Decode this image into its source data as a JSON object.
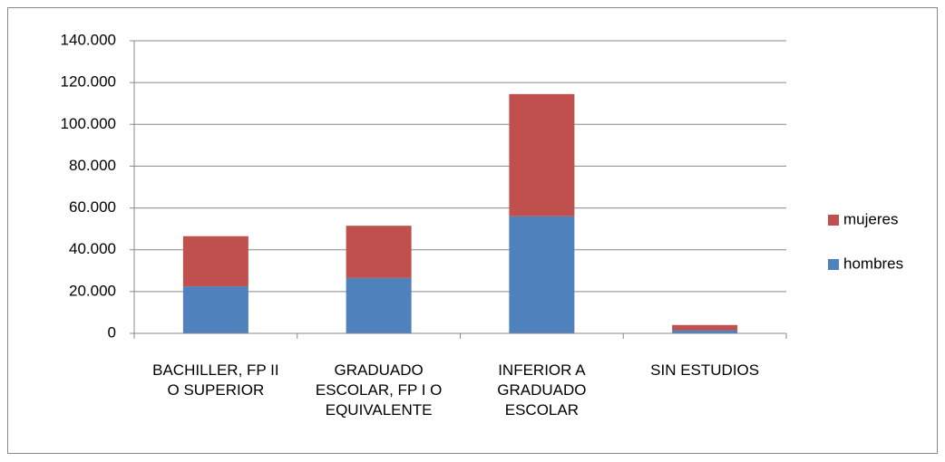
{
  "chart_data": {
    "type": "stacked_bar",
    "categories": [
      "BACHILLER, FP II\nO SUPERIOR",
      "GRADUADO\nESCOLAR, FP I O\nEQUIVALENTE",
      "INFERIOR A\nGRADUADO\nESCOLAR",
      "SIN ESTUDIOS"
    ],
    "series": [
      {
        "name": "hombres",
        "color": "#4f81bd",
        "values": [
          22500,
          26500,
          56000,
          1500
        ]
      },
      {
        "name": "mujeres",
        "color": "#c0504d",
        "values": [
          24000,
          25000,
          58500,
          2500
        ]
      }
    ],
    "ylim": [
      0,
      140000
    ],
    "yticks": [
      0,
      {
        "value": 20000,
        "label": "20.000"
      },
      {
        "value": 40000,
        "label": "40.000"
      },
      {
        "value": 60000,
        "label": "60.000"
      },
      {
        "value": 80000,
        "label": "80.000"
      },
      {
        "value": 100000,
        "label": "100.000"
      },
      {
        "value": 120000,
        "label": "120.000"
      },
      {
        "value": 140000,
        "label": "140.000"
      }
    ],
    "grid": true,
    "legend": "right"
  }
}
